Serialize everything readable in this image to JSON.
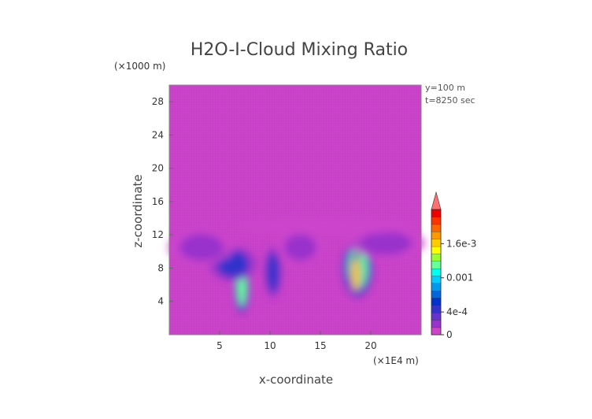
{
  "chart_data": {
    "type": "heatmap",
    "title": "H2O-I-Cloud Mixing Ratio",
    "xlabel": "x-coordinate",
    "ylabel": "z-coordinate",
    "x_unit": "(×1E4 m)",
    "y_unit": "(×1000 m)",
    "annotations": [
      "y=100 m",
      "t=8250 sec"
    ],
    "xlim": [
      0,
      25
    ],
    "ylim": [
      0,
      30
    ],
    "x_ticks": [
      5,
      10,
      15,
      20
    ],
    "y_ticks": [
      4,
      8,
      12,
      16,
      20,
      24,
      28
    ],
    "background_color": "#cc44cc",
    "colorbar": {
      "ticks": [
        {
          "value": 0,
          "label": "0"
        },
        {
          "value": 0.0004,
          "label": "4e-4"
        },
        {
          "value": 0.001,
          "label": "0.001"
        },
        {
          "value": 0.0016,
          "label": "1.6e-3"
        }
      ],
      "min": 0,
      "max": 0.0022,
      "colors": [
        "#cc44cc",
        "#9933cc",
        "#6633cc",
        "#3333cc",
        "#0033cc",
        "#0066dd",
        "#0099ee",
        "#00ccff",
        "#00ffee",
        "#66ff99",
        "#99ff33",
        "#ffff00",
        "#ffcc00",
        "#ff9900",
        "#ff6600",
        "#ff3300",
        "#ee0000"
      ],
      "extend_arrow_color": "#ff7070"
    },
    "cloud_regions": [
      {
        "x": 7.2,
        "z": 6.0,
        "w": 0.5,
        "h": 2.6,
        "level": 0.0012
      },
      {
        "x": 6.3,
        "z": 8.5,
        "w": 1.6,
        "h": 1.6,
        "level": 0.0005
      },
      {
        "x": 3.2,
        "z": 10.5,
        "w": 2.2,
        "h": 1.6,
        "level": 0.00025
      },
      {
        "x": 10.3,
        "z": 7.5,
        "w": 0.6,
        "h": 2.4,
        "level": 0.0005
      },
      {
        "x": 13.0,
        "z": 10.5,
        "w": 1.6,
        "h": 1.6,
        "level": 0.00025
      },
      {
        "x": 18.7,
        "z": 8.0,
        "w": 1.0,
        "h": 2.6,
        "level": 0.0012
      },
      {
        "x": 18.5,
        "z": 7.2,
        "w": 0.4,
        "h": 2.0,
        "level": 0.0016
      },
      {
        "x": 21.5,
        "z": 11.0,
        "w": 2.6,
        "h": 1.4,
        "level": 0.0002
      },
      {
        "x": 15.5,
        "z": 13.0,
        "w": 6.0,
        "h": 0.8,
        "level": 8e-05
      }
    ]
  }
}
